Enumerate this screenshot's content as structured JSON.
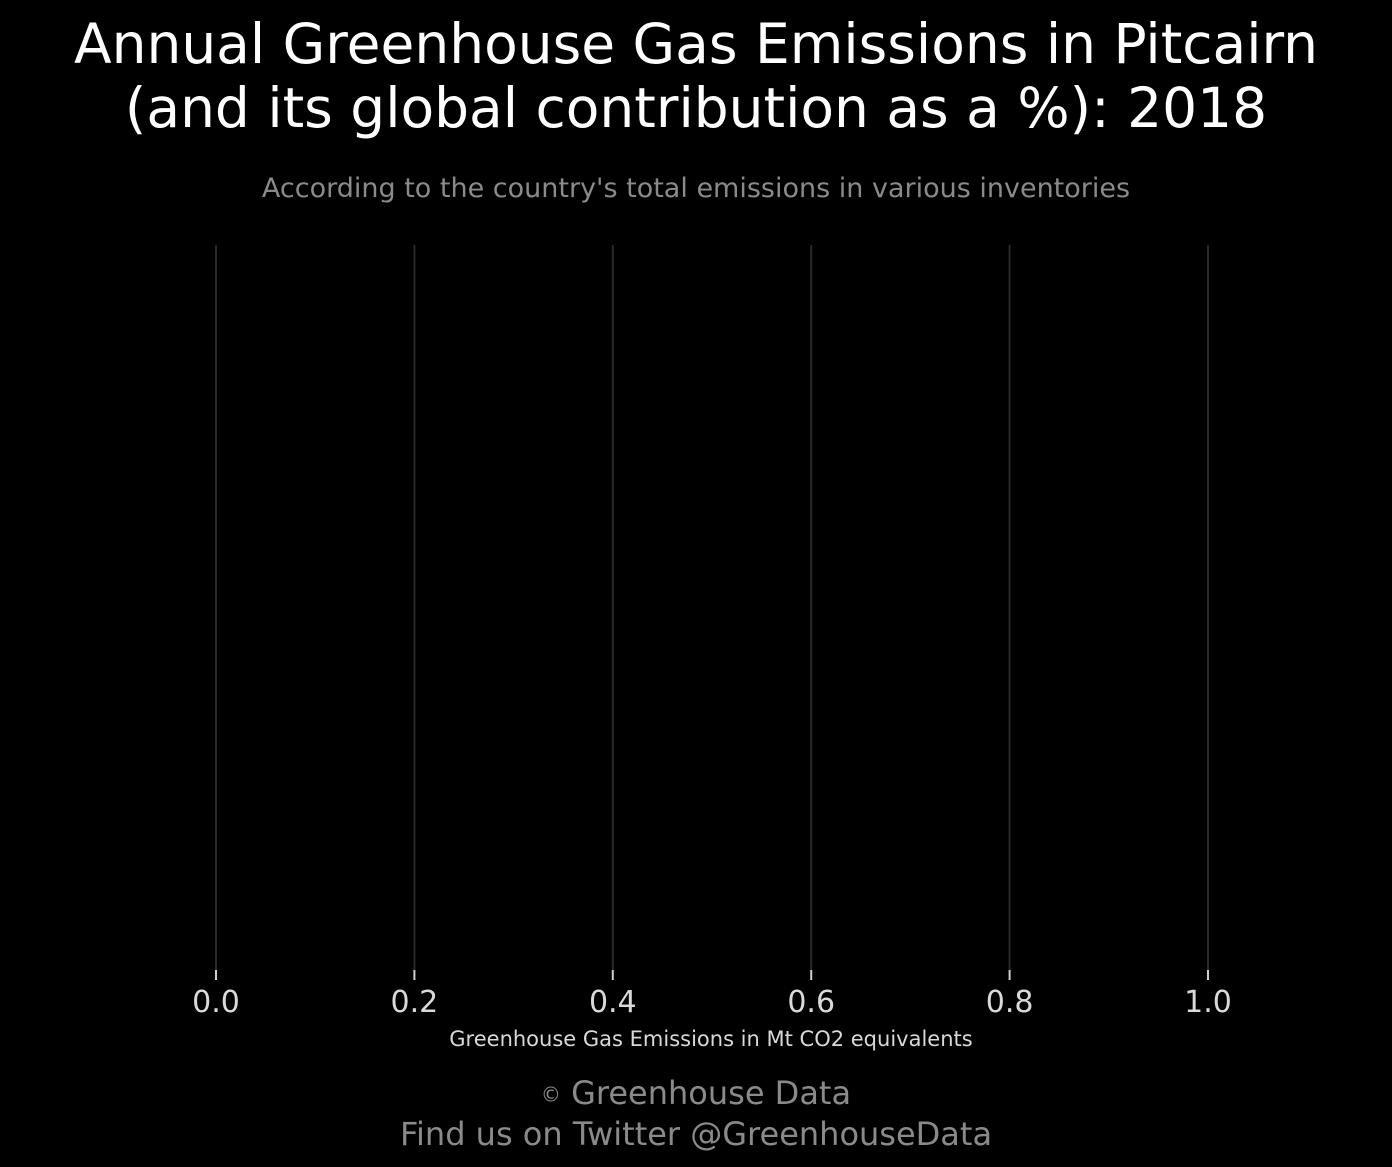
{
  "chart_data": {
    "type": "bar",
    "title_lines": [
      "Annual Greenhouse Gas Emissions in Pitcairn",
      "(and its global contribution as a %): 2018"
    ],
    "subtitle": "According to the country's total emissions in various inventories",
    "xlabel": "Greenhouse Gas Emissions in Mt CO2 equivalents",
    "ylabel": "",
    "xlim": [
      0,
      1
    ],
    "x_ticks": [
      0.0,
      0.2,
      0.4,
      0.6,
      0.8,
      1.0
    ],
    "x_tick_labels": [
      "0.0",
      "0.2",
      "0.4",
      "0.6",
      "0.8",
      "1.0"
    ],
    "categories": [],
    "values": [],
    "grid": "vertical",
    "colors": {
      "background": "#000000",
      "grid": "#2a2a2a",
      "text": "#ffffff",
      "muted_text": "#8a8a8a"
    }
  },
  "caption": {
    "copyright_symbol": "©",
    "line1": "Greenhouse Data",
    "line2": "Find us on Twitter @GreenhouseData"
  }
}
